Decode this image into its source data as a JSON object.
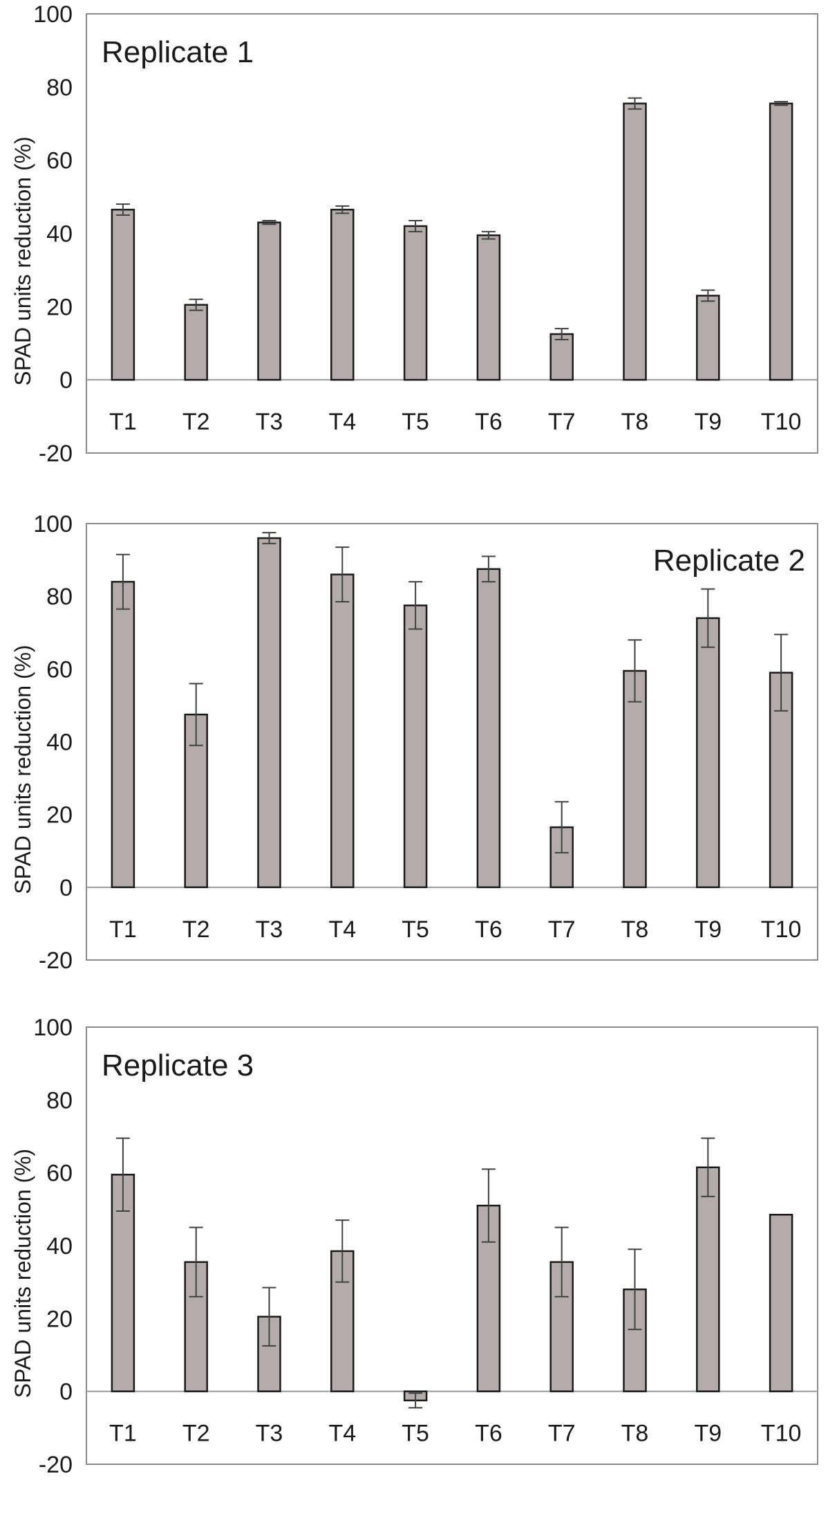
{
  "chart_data": [
    {
      "type": "bar",
      "title": "Replicate 1",
      "title_position": "top-left",
      "ylabel": "SPAD units reduction (%)",
      "xlabel": "",
      "ylim": [
        -20,
        100
      ],
      "yticks": [
        -20,
        0,
        20,
        40,
        60,
        80,
        100
      ],
      "categories": [
        "T1",
        "T2",
        "T3",
        "T4",
        "T5",
        "T6",
        "T7",
        "T8",
        "T9",
        "T10"
      ],
      "values": [
        46.5,
        20.5,
        43,
        46.5,
        42,
        39.5,
        12.5,
        75.5,
        23,
        75.5
      ],
      "errors": [
        1.5,
        1.5,
        0.5,
        1,
        1.5,
        1,
        1.5,
        1.5,
        1.5,
        0.5
      ],
      "bar_color": "#b3acaa"
    },
    {
      "type": "bar",
      "title": "Replicate 2",
      "title_position": "top-right",
      "ylabel": "SPAD units reduction (%)",
      "xlabel": "",
      "ylim": [
        -20,
        100
      ],
      "yticks": [
        -20,
        0,
        20,
        40,
        60,
        80,
        100
      ],
      "categories": [
        "T1",
        "T2",
        "T3",
        "T4",
        "T5",
        "T6",
        "T7",
        "T8",
        "T9",
        "T10"
      ],
      "values": [
        84,
        47.5,
        96,
        86,
        77.5,
        87.5,
        16.5,
        59.5,
        74,
        59
      ],
      "errors": [
        7.5,
        8.5,
        1.5,
        7.5,
        6.5,
        3.5,
        7,
        8.5,
        8,
        10.5
      ],
      "bar_color": "#b3acaa"
    },
    {
      "type": "bar",
      "title": "Replicate 3",
      "title_position": "top-left",
      "ylabel": "SPAD units reduction (%)",
      "xlabel": "",
      "ylim": [
        -20,
        100
      ],
      "yticks": [
        -20,
        0,
        20,
        40,
        60,
        80,
        100
      ],
      "categories": [
        "T1",
        "T2",
        "T3",
        "T4",
        "T5",
        "T6",
        "T7",
        "T8",
        "T9",
        "T10"
      ],
      "values": [
        59.5,
        35.5,
        20.5,
        38.5,
        -2.5,
        51,
        35.5,
        28,
        61.5,
        48.5
      ],
      "errors": [
        10,
        9.5,
        8,
        8.5,
        2,
        10,
        9.5,
        11,
        8,
        0
      ],
      "bar_color": "#b3acaa"
    }
  ]
}
